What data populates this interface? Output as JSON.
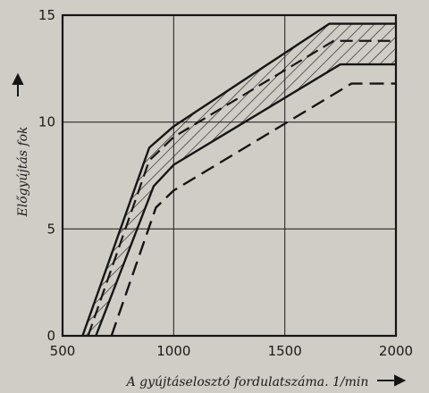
{
  "chart_data": {
    "type": "line",
    "title": "",
    "xlabel": "A gyújtáselosztó fordulatszáma. 1/min",
    "ylabel": "Előgyújtás  fok",
    "xlim": [
      500,
      2000
    ],
    "ylim": [
      0,
      15
    ],
    "x_ticks": [
      "500",
      "1000",
      "1500",
      "2000"
    ],
    "y_ticks": [
      "0",
      "5",
      "10",
      "15"
    ],
    "grid": true,
    "series": [
      {
        "x": [
          590,
          890,
          1000,
          1700,
          2000
        ],
        "values": [
          0,
          8.8,
          9.8,
          14.6,
          14.6
        ]
      },
      {
        "x": [
          615,
          890,
          1000,
          1720,
          2000
        ],
        "values": [
          0,
          8.2,
          9.3,
          13.8,
          13.8
        ]
      },
      {
        "x": [
          650,
          910,
          1000,
          1750,
          2000
        ],
        "values": [
          0,
          7.0,
          8.0,
          12.7,
          12.7
        ]
      },
      {
        "x": [
          720,
          920,
          1000,
          1800,
          2000
        ],
        "values": [
          0,
          6.0,
          6.8,
          11.8,
          11.8
        ]
      }
    ]
  }
}
